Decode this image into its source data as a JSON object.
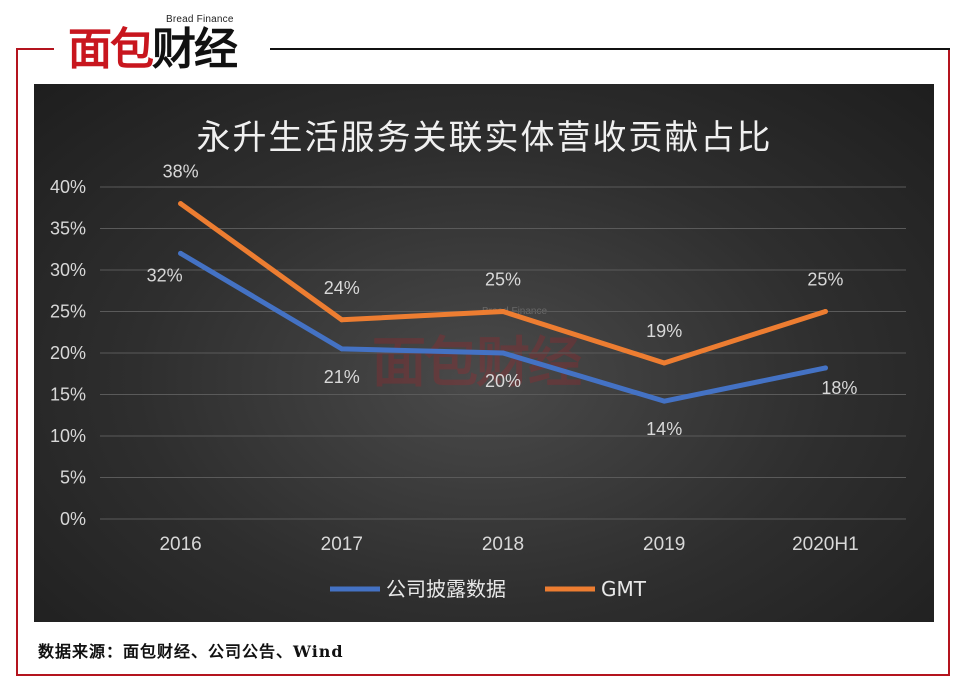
{
  "logo": {
    "subtitle": "Bread Finance",
    "brand_red": "面包",
    "brand_dark": "财经"
  },
  "watermark": {
    "subtitle": "Bread Finance",
    "text": "面包财经"
  },
  "colors": {
    "company_series": "#4472c4",
    "gmt_series": "#ed7d31",
    "brand_red": "#c8161e",
    "panel_bg": "#2e2e2e"
  },
  "source": "数据来源：面包财经、公司公告、Wind",
  "chart_data": {
    "type": "line",
    "title": "永升生活服务关联实体营收贡献占比",
    "xlabel": "",
    "ylabel": "",
    "categories": [
      "2016",
      "2017",
      "2018",
      "2019",
      "2020H1"
    ],
    "ylim": [
      0,
      40
    ],
    "yticks": [
      "0%",
      "5%",
      "10%",
      "15%",
      "20%",
      "25%",
      "30%",
      "35%",
      "40%"
    ],
    "grid": true,
    "legend_position": "bottom",
    "series": [
      {
        "name": "公司披露数据",
        "values": [
          32,
          20.5,
          20,
          14.2,
          18.2
        ],
        "labels": [
          "32%",
          "21%",
          "20%",
          "14%",
          "18%"
        ]
      },
      {
        "name": "GMT",
        "values": [
          38,
          24,
          25,
          18.8,
          25
        ],
        "labels": [
          "38%",
          "24%",
          "25%",
          "19%",
          "25%"
        ]
      }
    ]
  }
}
